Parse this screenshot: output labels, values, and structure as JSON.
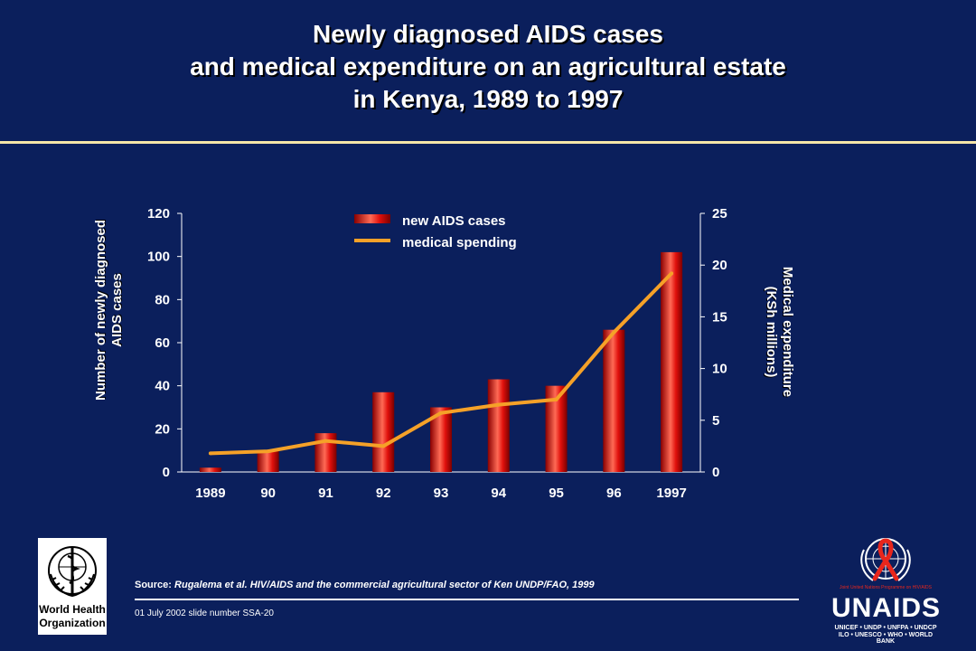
{
  "slide": {
    "title_lines": [
      "Newly diagnosed AIDS cases",
      "and medical expenditure on an agricultural estate",
      "in Kenya, 1989 to 1997"
    ],
    "source_prefix": "Source:",
    "source_text": " Rugalema et al. HIV/AIDS and the commercial agricultural sector of Ken UNDP/FAO, 1999",
    "footer": "01 July 2002 slide number SSA-20",
    "who_logo_text_1": "World Health",
    "who_logo_text_2": "Organization",
    "unaids_word": "UNAIDS",
    "unaids_tagline": "Joint United Nations Programme on HIV/AIDS",
    "unaids_sub1": "UNICEF • UNDP • UNFPA • UNDCP",
    "unaids_sub2": "ILO • UNESCO • WHO • WORLD BANK"
  },
  "colors": {
    "background": "#0b1f5c",
    "bar": "#e0100c",
    "bar_highlight": "#ff6a55",
    "line": "#f5a128",
    "rule": "#f5e6a8"
  },
  "chart_data": {
    "type": "bar",
    "title": "",
    "categories": [
      "1989",
      "90",
      "91",
      "92",
      "93",
      "94",
      "95",
      "96",
      "1997"
    ],
    "series": [
      {
        "name": "new AIDS cases",
        "type": "bar",
        "axis": "left",
        "values": [
          2,
          10,
          18,
          37,
          30,
          43,
          40,
          66,
          102
        ]
      },
      {
        "name": "medical spending",
        "type": "line",
        "axis": "right",
        "values": [
          1.8,
          2.0,
          3.0,
          2.5,
          5.7,
          6.5,
          7.0,
          13.5,
          19.2
        ]
      }
    ],
    "ylabel_left": "Number of newly diagnosed AIDS cases",
    "ylabel_left_lines": [
      "Number of newly diagnosed",
      "AIDS cases"
    ],
    "ylabel_right": "Medical expenditure (KSh millions)",
    "ylabel_right_lines": [
      "Medical expenditure",
      "(KSh millions)"
    ],
    "ylim_left": [
      0,
      120
    ],
    "yticks_left": [
      "0",
      "20",
      "40",
      "60",
      "80",
      "100",
      "120"
    ],
    "ylim_right": [
      0,
      25
    ],
    "yticks_right": [
      "0",
      "5",
      "10",
      "15",
      "20",
      "25"
    ],
    "grid": false,
    "legend_position": "top-center"
  }
}
